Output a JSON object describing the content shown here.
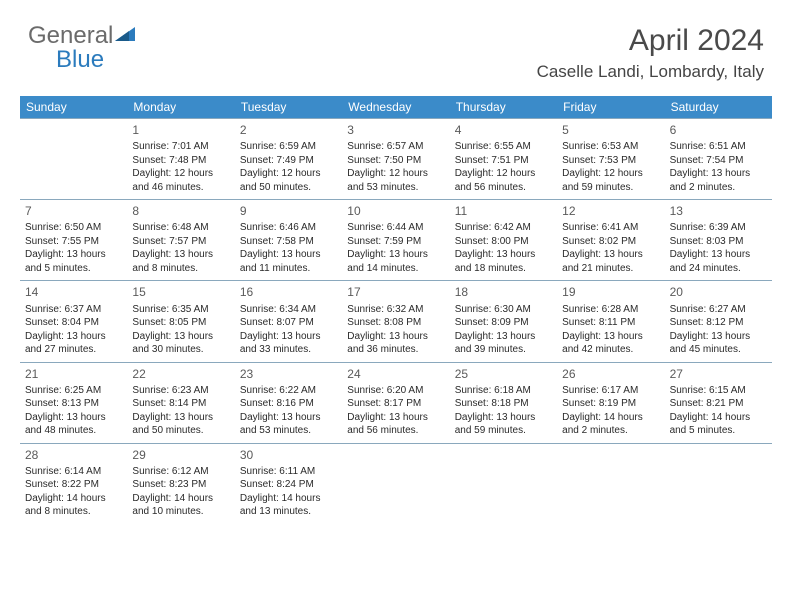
{
  "logo": {
    "part1": "General",
    "part2": "Blue"
  },
  "title": "April 2024",
  "location": "Caselle Landi, Lombardy, Italy",
  "colors": {
    "header_bg": "#3b8bc9",
    "header_text": "#ffffff",
    "border": "#8aa8bd",
    "text": "#2a2a2a"
  },
  "daysOfWeek": [
    "Sunday",
    "Monday",
    "Tuesday",
    "Wednesday",
    "Thursday",
    "Friday",
    "Saturday"
  ],
  "leading_blanks": 1,
  "days": [
    {
      "n": 1,
      "sr": "7:01 AM",
      "ss": "7:48 PM",
      "dl": "12 hours and 46 minutes."
    },
    {
      "n": 2,
      "sr": "6:59 AM",
      "ss": "7:49 PM",
      "dl": "12 hours and 50 minutes."
    },
    {
      "n": 3,
      "sr": "6:57 AM",
      "ss": "7:50 PM",
      "dl": "12 hours and 53 minutes."
    },
    {
      "n": 4,
      "sr": "6:55 AM",
      "ss": "7:51 PM",
      "dl": "12 hours and 56 minutes."
    },
    {
      "n": 5,
      "sr": "6:53 AM",
      "ss": "7:53 PM",
      "dl": "12 hours and 59 minutes."
    },
    {
      "n": 6,
      "sr": "6:51 AM",
      "ss": "7:54 PM",
      "dl": "13 hours and 2 minutes."
    },
    {
      "n": 7,
      "sr": "6:50 AM",
      "ss": "7:55 PM",
      "dl": "13 hours and 5 minutes."
    },
    {
      "n": 8,
      "sr": "6:48 AM",
      "ss": "7:57 PM",
      "dl": "13 hours and 8 minutes."
    },
    {
      "n": 9,
      "sr": "6:46 AM",
      "ss": "7:58 PM",
      "dl": "13 hours and 11 minutes."
    },
    {
      "n": 10,
      "sr": "6:44 AM",
      "ss": "7:59 PM",
      "dl": "13 hours and 14 minutes."
    },
    {
      "n": 11,
      "sr": "6:42 AM",
      "ss": "8:00 PM",
      "dl": "13 hours and 18 minutes."
    },
    {
      "n": 12,
      "sr": "6:41 AM",
      "ss": "8:02 PM",
      "dl": "13 hours and 21 minutes."
    },
    {
      "n": 13,
      "sr": "6:39 AM",
      "ss": "8:03 PM",
      "dl": "13 hours and 24 minutes."
    },
    {
      "n": 14,
      "sr": "6:37 AM",
      "ss": "8:04 PM",
      "dl": "13 hours and 27 minutes."
    },
    {
      "n": 15,
      "sr": "6:35 AM",
      "ss": "8:05 PM",
      "dl": "13 hours and 30 minutes."
    },
    {
      "n": 16,
      "sr": "6:34 AM",
      "ss": "8:07 PM",
      "dl": "13 hours and 33 minutes."
    },
    {
      "n": 17,
      "sr": "6:32 AM",
      "ss": "8:08 PM",
      "dl": "13 hours and 36 minutes."
    },
    {
      "n": 18,
      "sr": "6:30 AM",
      "ss": "8:09 PM",
      "dl": "13 hours and 39 minutes."
    },
    {
      "n": 19,
      "sr": "6:28 AM",
      "ss": "8:11 PM",
      "dl": "13 hours and 42 minutes."
    },
    {
      "n": 20,
      "sr": "6:27 AM",
      "ss": "8:12 PM",
      "dl": "13 hours and 45 minutes."
    },
    {
      "n": 21,
      "sr": "6:25 AM",
      "ss": "8:13 PM",
      "dl": "13 hours and 48 minutes."
    },
    {
      "n": 22,
      "sr": "6:23 AM",
      "ss": "8:14 PM",
      "dl": "13 hours and 50 minutes."
    },
    {
      "n": 23,
      "sr": "6:22 AM",
      "ss": "8:16 PM",
      "dl": "13 hours and 53 minutes."
    },
    {
      "n": 24,
      "sr": "6:20 AM",
      "ss": "8:17 PM",
      "dl": "13 hours and 56 minutes."
    },
    {
      "n": 25,
      "sr": "6:18 AM",
      "ss": "8:18 PM",
      "dl": "13 hours and 59 minutes."
    },
    {
      "n": 26,
      "sr": "6:17 AM",
      "ss": "8:19 PM",
      "dl": "14 hours and 2 minutes."
    },
    {
      "n": 27,
      "sr": "6:15 AM",
      "ss": "8:21 PM",
      "dl": "14 hours and 5 minutes."
    },
    {
      "n": 28,
      "sr": "6:14 AM",
      "ss": "8:22 PM",
      "dl": "14 hours and 8 minutes."
    },
    {
      "n": 29,
      "sr": "6:12 AM",
      "ss": "8:23 PM",
      "dl": "14 hours and 10 minutes."
    },
    {
      "n": 30,
      "sr": "6:11 AM",
      "ss": "8:24 PM",
      "dl": "14 hours and 13 minutes."
    }
  ],
  "labels": {
    "sunrise": "Sunrise:",
    "sunset": "Sunset:",
    "daylight": "Daylight:"
  }
}
